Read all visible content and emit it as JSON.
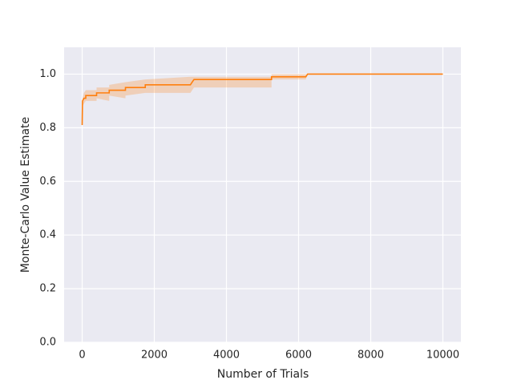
{
  "chart_data": {
    "type": "line",
    "xlabel": "Number of Trials",
    "ylabel": "Monte-Carlo Value Estimate",
    "x": [
      0,
      10,
      50,
      100,
      100,
      400,
      400,
      750,
      750,
      1200,
      1200,
      1750,
      1750,
      3000,
      3050,
      3100,
      5250,
      5250,
      6200,
      6250,
      10000
    ],
    "series": [
      {
        "color": "#ff7f0e",
        "values": [
          0.81,
          0.9,
          0.91,
          0.91,
          0.92,
          0.92,
          0.93,
          0.93,
          0.94,
          0.94,
          0.95,
          0.95,
          0.96,
          0.96,
          0.97,
          0.98,
          0.98,
          0.99,
          0.99,
          1.0,
          1.0
        ],
        "lower": [
          0.8,
          0.88,
          0.89,
          0.9,
          0.9,
          0.9,
          0.91,
          0.9,
          0.92,
          0.91,
          0.92,
          0.93,
          0.93,
          0.93,
          0.94,
          0.95,
          0.95,
          0.98,
          0.98,
          1.0,
          1.0
        ],
        "upper": [
          0.82,
          0.91,
          0.93,
          0.94,
          0.94,
          0.94,
          0.95,
          0.95,
          0.96,
          0.97,
          0.97,
          0.98,
          0.98,
          0.99,
          0.99,
          0.99,
          0.99,
          1.0,
          1.0,
          1.0,
          1.0
        ]
      }
    ],
    "xlim": [
      -500,
      10500
    ],
    "xticks": [
      0,
      2000,
      4000,
      6000,
      8000,
      10000
    ],
    "ylim": [
      0,
      1.1
    ],
    "yticks": [
      {
        "value": 0,
        "label": "0.0"
      },
      {
        "value": 0.2,
        "label": "0.2"
      },
      {
        "value": 0.4,
        "label": "0.4"
      },
      {
        "value": 0.6,
        "label": "0.6"
      },
      {
        "value": 0.8,
        "label": "0.8"
      },
      {
        "value": 1.0,
        "label": "1.0"
      }
    ],
    "grid": true
  }
}
